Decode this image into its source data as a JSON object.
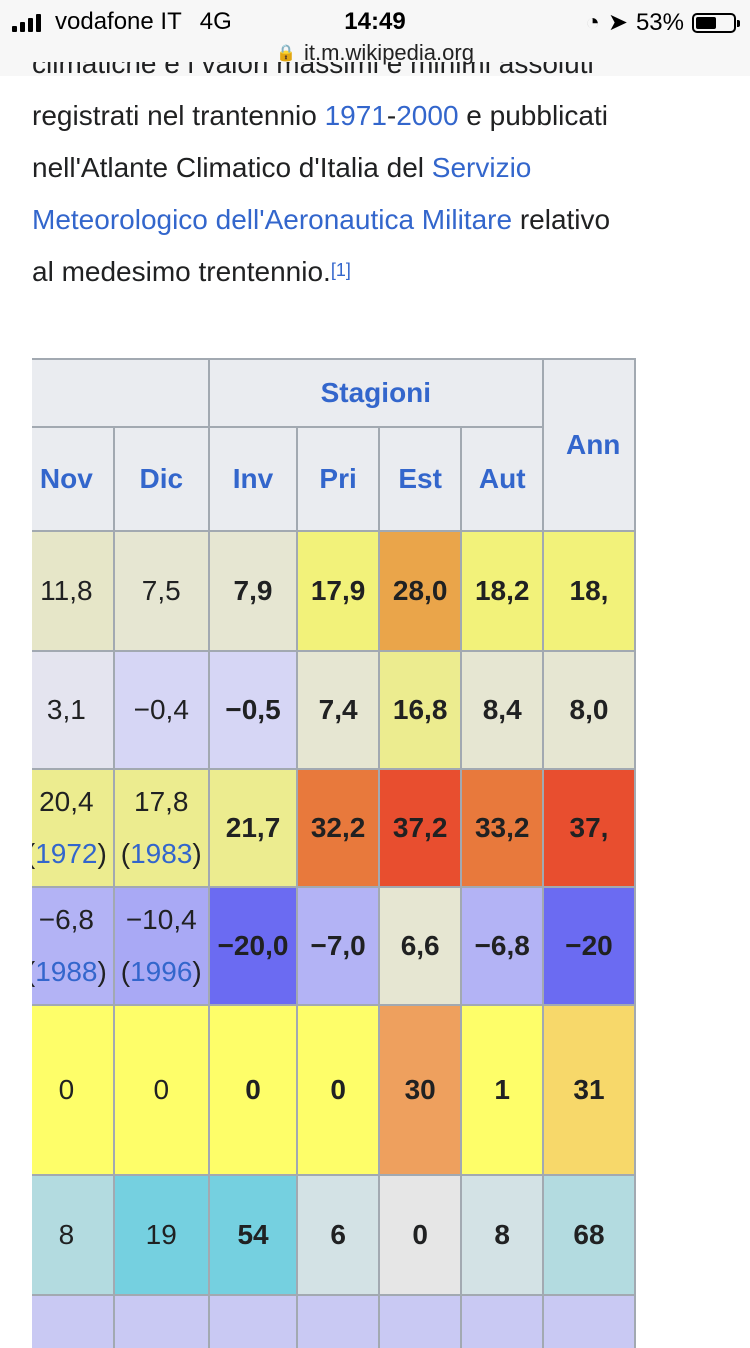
{
  "status": {
    "carrier": "vodafone IT",
    "network": "4G",
    "time": "14:49",
    "battery": "53%",
    "url": "it.m.wikipedia.org"
  },
  "article": {
    "cut_line": "climatiche e i valori massimi e minimi assoluti",
    "line2_pre": "registrati nel trantennio ",
    "link1971": "1971",
    "dash": "-",
    "link2000": "2000",
    "line2_post": " e pubblicati",
    "line3_pre": "nell'Atlante Climatico d'Italia del ",
    "link_servizio": "Servizio",
    "link_meteo": "Meteorologico dell'Aeronautica Militare",
    "line4_post": " relativo",
    "line5": "al medesimo trentennio.",
    "ref": "[1]"
  },
  "table": {
    "group_header": "Stagioni",
    "annual_header": "Ann",
    "columns": [
      "Nov",
      "Dic",
      "Inv",
      "Pri",
      "Est",
      "Aut"
    ],
    "colors": {
      "header_bg": "#eaecf0",
      "link": "#3366cc",
      "border": "#a2a9b1"
    },
    "rows": [
      {
        "cells": [
          {
            "v": "",
            "bg": "#f6f67a"
          },
          {
            "v": "11,8",
            "bg": "#e6e6c8"
          },
          {
            "v": "7,5",
            "bg": "#e6e6d2"
          },
          {
            "v": "7,9",
            "bg": "#e6e6d2",
            "bold": true
          },
          {
            "v": "17,9",
            "bg": "#f2f27a",
            "bold": true
          },
          {
            "v": "28,0",
            "bg": "#eaa54a",
            "bold": true
          },
          {
            "v": "18,2",
            "bg": "#f2f27a",
            "bold": true
          },
          {
            "v": "18,",
            "bg": "#f2f27a",
            "bold": true
          }
        ]
      },
      {
        "cells": [
          {
            "v": "",
            "bg": "#e6e6c8"
          },
          {
            "v": "3,1",
            "bg": "#e4e4ef"
          },
          {
            "v": "−0,4",
            "bg": "#d6d6f5"
          },
          {
            "v": "−0,5",
            "bg": "#d6d6f5",
            "bold": true
          },
          {
            "v": "7,4",
            "bg": "#e6e6d2",
            "bold": true
          },
          {
            "v": "16,8",
            "bg": "#ecec8f",
            "bold": true
          },
          {
            "v": "8,4",
            "bg": "#e6e6d2",
            "bold": true
          },
          {
            "v": "8,0",
            "bg": "#e6e6d2",
            "bold": true
          }
        ]
      },
      {
        "cells": [
          {
            "v": "",
            "bg": "#eaa54a",
            "year": ")"
          },
          {
            "v": "20,4",
            "bg": "#ecec8f",
            "year": "1972"
          },
          {
            "v": "17,8",
            "bg": "#ecec8f",
            "year": "1983"
          },
          {
            "v": "21,7",
            "bg": "#ecec8f",
            "bold": true
          },
          {
            "v": "32,2",
            "bg": "#e8793c",
            "bold": true
          },
          {
            "v": "37,2",
            "bg": "#e84e2f",
            "bold": true
          },
          {
            "v": "33,2",
            "bg": "#e8793c",
            "bold": true
          },
          {
            "v": "37,",
            "bg": "#e84e2f",
            "bold": true
          }
        ]
      },
      {
        "cells": [
          {
            "v": "",
            "bg": "#b3b3f5",
            "year": ")"
          },
          {
            "v": "−6,8",
            "bg": "#b3b3f5",
            "year": "1988"
          },
          {
            "v": "−10,4",
            "bg": "#a9a9f5",
            "year": "1996"
          },
          {
            "v": "−20,0",
            "bg": "#6b6bf2",
            "bold": true
          },
          {
            "v": "−7,0",
            "bg": "#b3b3f5",
            "bold": true
          },
          {
            "v": "6,6",
            "bg": "#e6e6d2",
            "bold": true
          },
          {
            "v": "−6,8",
            "bg": "#b3b3f5",
            "bold": true
          },
          {
            "v": "−20",
            "bg": "#6b6bf2",
            "bold": true
          }
        ]
      },
      {
        "cells": [
          {
            "v": "",
            "bg": "#fefe69"
          },
          {
            "v": "0",
            "bg": "#fefe69"
          },
          {
            "v": "0",
            "bg": "#fefe69"
          },
          {
            "v": "0",
            "bg": "#fefe69",
            "bold": true
          },
          {
            "v": "0",
            "bg": "#fefe69",
            "bold": true
          },
          {
            "v": "30",
            "bg": "#eea05e",
            "bold": true
          },
          {
            "v": "1",
            "bg": "#fefe69",
            "bold": true
          },
          {
            "v": "31",
            "bg": "#f7d86a",
            "bold": true
          }
        ]
      },
      {
        "cells": [
          {
            "v": "",
            "bg": "#b3dbe0"
          },
          {
            "v": "8",
            "bg": "#b3dbe0"
          },
          {
            "v": "19",
            "bg": "#75d0e0"
          },
          {
            "v": "54",
            "bg": "#75d0e0",
            "bold": true
          },
          {
            "v": "6",
            "bg": "#d3e2e5",
            "bold": true
          },
          {
            "v": "0",
            "bg": "#e6e6e6",
            "bold": true
          },
          {
            "v": "8",
            "bg": "#d3e2e5",
            "bold": true
          },
          {
            "v": "68",
            "bg": "#b3dbe0",
            "bold": true
          }
        ]
      },
      {
        "cells": [
          {
            "v": "",
            "bg": "#c9c9f3"
          },
          {
            "v": "",
            "bg": "#c9c9f3"
          },
          {
            "v": "",
            "bg": "#c9c9f3"
          },
          {
            "v": "",
            "bg": "#c9c9f3"
          },
          {
            "v": "",
            "bg": "#c9c9f3"
          },
          {
            "v": "",
            "bg": "#c9c9f3"
          },
          {
            "v": "",
            "bg": "#c9c9f3"
          },
          {
            "v": "",
            "bg": "#c9c9f3"
          }
        ]
      }
    ]
  }
}
